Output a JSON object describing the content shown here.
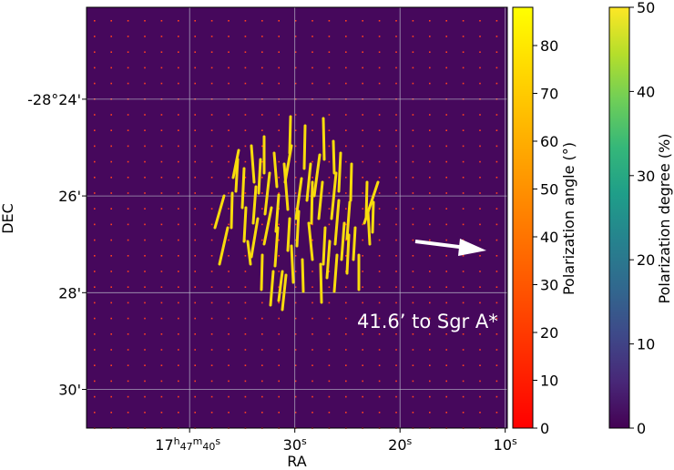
{
  "chart_data": {
    "type": "heatmap",
    "xlabel": "RA",
    "ylabel": "DEC",
    "x_ticks": [
      {
        "value_sec": 40,
        "label_main": "17",
        "sup1": "h",
        "mid": "47",
        "sup2": "m",
        "end": "40",
        "sup3": "s"
      },
      {
        "value_sec": 30,
        "label_main": "30",
        "sup3": "s"
      },
      {
        "value_sec": 20,
        "label_main": "20",
        "sup3": "s"
      },
      {
        "value_sec": 10,
        "label_main": "10",
        "sup3": "s"
      }
    ],
    "y_ticks": [
      {
        "value_arcmin": -24,
        "label": "-28°24'"
      },
      {
        "value_arcmin": -26,
        "label": "26'"
      },
      {
        "value_arcmin": -28,
        "label": "28'"
      },
      {
        "value_arcmin": -30,
        "label": "30'"
      }
    ],
    "ra_range_sec": [
      49.8,
      9.8
    ],
    "dec_range_arcmin": [
      -22.1,
      -30.8
    ],
    "grid": true,
    "annotation": {
      "text": "41.6’ to Sgr A*",
      "arrow_direction": "east"
    },
    "angle_colorbar": {
      "label": "Polarization angle (°)",
      "ticks": [
        "0",
        "10",
        "20",
        "30",
        "40",
        "50",
        "60",
        "70",
        "80"
      ],
      "range": [
        0,
        88
      ],
      "colormap": "autumn",
      "colors": [
        "#ff0000",
        "#ffff00"
      ]
    },
    "degree_colorbar": {
      "label": "Polarization degree (%)",
      "ticks": [
        "0",
        "10",
        "20",
        "30",
        "40",
        "50"
      ],
      "range": [
        0,
        50
      ],
      "colormap": "viridis",
      "colors": [
        "#440154",
        "#482878",
        "#3e4989",
        "#31688e",
        "#26828e",
        "#1f9e89",
        "#35b779",
        "#6ece58",
        "#b5de2b",
        "#fde725"
      ]
    },
    "background_color": "#46085c",
    "region_color": "#2a8f8a",
    "vector_color": "#f8dc0c",
    "grid_dot_color": "#ff4020",
    "arrow_color": "#ffffff"
  }
}
